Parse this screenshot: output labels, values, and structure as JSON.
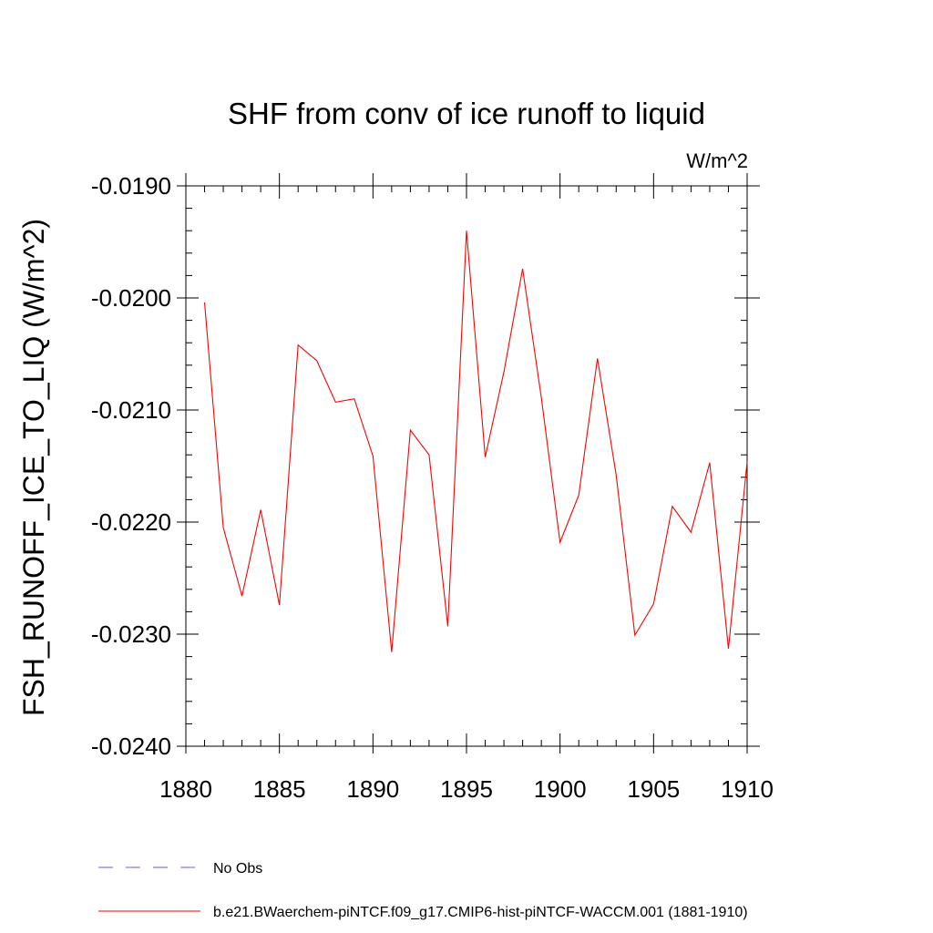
{
  "chart_data": {
    "type": "line",
    "title": "SHF from conv of ice runoff to liquid",
    "units_label": "W/m^2",
    "xlabel": "",
    "ylabel": "FSH_RUNOFF_ICE_TO_LIQ  (W/m^2)",
    "xlim": [
      1880,
      1910
    ],
    "ylim": [
      -0.024,
      -0.019
    ],
    "x_ticks": [
      1880,
      1885,
      1890,
      1895,
      1900,
      1905,
      1910
    ],
    "x_tick_labels": [
      "1880",
      "1885",
      "1890",
      "1895",
      "1900",
      "1905",
      "1910"
    ],
    "y_ticks": [
      -0.019,
      -0.02,
      -0.021,
      -0.022,
      -0.023,
      -0.024
    ],
    "y_tick_labels": [
      "-0.0190",
      "-0.0200",
      "-0.0210",
      "-0.0220",
      "-0.0230",
      "-0.0240"
    ],
    "grid": false,
    "series": [
      {
        "name": "b.e21.BWaerchem-piNTCF.f09_g17.CMIP6-hist-piNTCF-WACCM.001 (1881-1910)",
        "color": "#ff0000",
        "x": [
          1881,
          1882,
          1883,
          1884,
          1885,
          1886,
          1887,
          1888,
          1889,
          1890,
          1891,
          1892,
          1893,
          1894,
          1895,
          1896,
          1897,
          1898,
          1899,
          1900,
          1901,
          1902,
          1903,
          1904,
          1905,
          1906,
          1907,
          1908,
          1909,
          1910
        ],
        "values": [
          -0.02004,
          -0.02205,
          -0.02266,
          -0.02189,
          -0.02274,
          -0.02042,
          -0.02056,
          -0.02093,
          -0.0209,
          -0.02141,
          -0.02316,
          -0.02118,
          -0.0214,
          -0.02293,
          -0.0194,
          -0.02142,
          -0.02066,
          -0.01974,
          -0.02089,
          -0.02218,
          -0.02176,
          -0.02054,
          -0.02158,
          -0.02301,
          -0.02273,
          -0.02186,
          -0.02209,
          -0.02147,
          -0.02313,
          -0.02146
        ]
      }
    ],
    "legend": {
      "placement": "bottom",
      "entries": [
        {
          "label": "No Obs",
          "color": "#6a5acd",
          "style": "dashed"
        },
        {
          "label": "b.e21.BWaerchem-piNTCF.f09_g17.CMIP6-hist-piNTCF-WACCM.001 (1881-1910)",
          "color": "#ff0000",
          "style": "solid"
        }
      ]
    }
  }
}
